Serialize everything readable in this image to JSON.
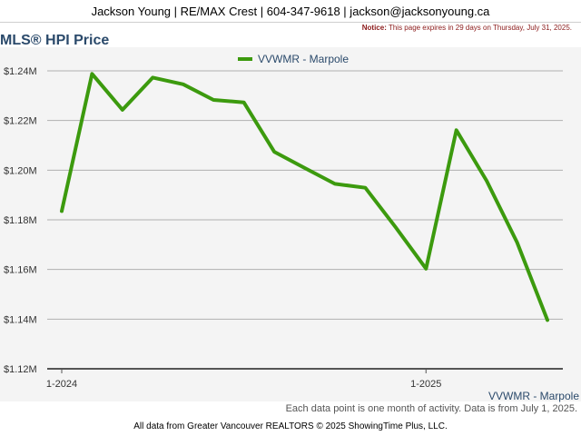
{
  "header": {
    "contact": "Jackson Young | RE/MAX Crest | 604-347-9618 | jackson@jacksonyoung.ca"
  },
  "notice": {
    "label": "Notice:",
    "text": "This page expires in 29 days on Thursday, July 31, 2025."
  },
  "footer": {
    "note": "Each data point is one month of activity. Data is from July 1, 2025.",
    "source": "All data from Greater Vancouver REALTORS © 2025 ShowingTime Plus, LLC."
  },
  "chart_data": {
    "type": "line",
    "title": "MLS® HPI Price",
    "xlabel": "",
    "ylabel": "",
    "ylim": [
      1120000,
      1240000
    ],
    "yticks": [
      1120000,
      1140000,
      1160000,
      1180000,
      1200000,
      1220000,
      1240000
    ],
    "ytick_labels": [
      "$1.12M",
      "$1.14M",
      "$1.16M",
      "$1.18M",
      "$1.20M",
      "$1.22M",
      "$1.24M"
    ],
    "xticks": [
      {
        "x": "2024-01",
        "label": "1-2024"
      },
      {
        "x": "2025-01",
        "label": "1-2025"
      }
    ],
    "x": [
      "2024-01",
      "2024-02",
      "2024-03",
      "2024-04",
      "2024-05",
      "2024-06",
      "2024-07",
      "2024-08",
      "2024-09",
      "2024-10",
      "2024-11",
      "2024-12",
      "2025-01",
      "2025-02",
      "2025-03",
      "2025-04",
      "2025-05"
    ],
    "series": [
      {
        "name": "VVWMR - Marpole",
        "color": "#3c9a0e",
        "values": [
          1183500,
          1238800,
          1224300,
          1237300,
          1234600,
          1228300,
          1227300,
          1207400,
          1200900,
          1194500,
          1192900,
          1177000,
          1160300,
          1216100,
          1195700,
          1170900,
          1139600
        ]
      }
    ],
    "legend": "top-center",
    "grid": true,
    "corner_label": "VVWMR - Marpole"
  }
}
